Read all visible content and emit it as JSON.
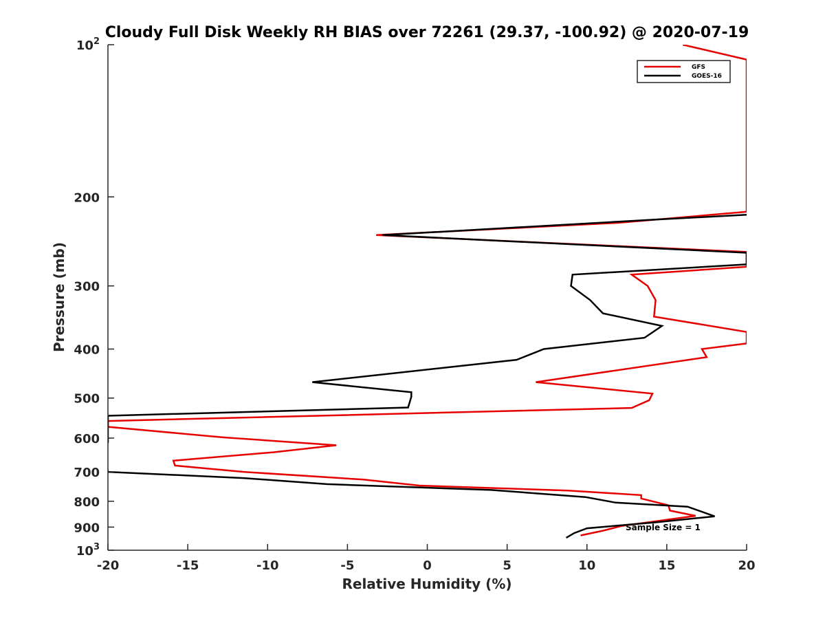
{
  "chart_data": {
    "type": "line",
    "title": "Cloudy Full Disk Weekly RH BIAS over 72261 (29.37, -100.92) @ 2020-07-19",
    "xlabel": "Relative Humidity (%)",
    "ylabel": "Pressure (mb)",
    "xlim": [
      -20,
      20
    ],
    "ylim": [
      100,
      1000
    ],
    "y_scale": "log",
    "y_reversed": true,
    "grid": false,
    "legend_position": "top-right",
    "x_ticks": [
      -20,
      -15,
      -10,
      -5,
      0,
      5,
      10,
      15,
      20
    ],
    "x_tick_labels": [
      "-20",
      "-15",
      "-10",
      "-5",
      "0",
      "5",
      "10",
      "15",
      "20"
    ],
    "y_ticks": [
      100,
      200,
      300,
      400,
      500,
      600,
      700,
      800,
      900,
      1000
    ],
    "y_tick_labels": [
      {
        "base": "10",
        "exp": "2"
      },
      {
        "base": "200",
        "exp": ""
      },
      {
        "base": "300",
        "exp": ""
      },
      {
        "base": "400",
        "exp": ""
      },
      {
        "base": "500",
        "exp": ""
      },
      {
        "base": "600",
        "exp": ""
      },
      {
        "base": "700",
        "exp": ""
      },
      {
        "base": "800",
        "exp": ""
      },
      {
        "base": "900",
        "exp": ""
      },
      {
        "base": "10",
        "exp": "3"
      }
    ],
    "annotation": "Sample Size = 1",
    "series": [
      {
        "name": "GFS",
        "color": "#e60000",
        "points": [
          [
            16,
            100
          ],
          [
            20,
            107
          ],
          [
            20,
            214
          ],
          [
            12,
            225
          ],
          [
            -3.2,
            238
          ],
          [
            20,
            257
          ],
          [
            20,
            275
          ],
          [
            12.8,
            285
          ],
          [
            13.8,
            300
          ],
          [
            14.3,
            320
          ],
          [
            14.2,
            345
          ],
          [
            20,
            370
          ],
          [
            20,
            390
          ],
          [
            17.2,
            400
          ],
          [
            17.5,
            415
          ],
          [
            6.8,
            465
          ],
          [
            14.1,
            490
          ],
          [
            13.9,
            505
          ],
          [
            12.8,
            523
          ],
          [
            -20,
            555
          ],
          [
            -20,
            570
          ],
          [
            -12.8,
            598
          ],
          [
            -5.7,
            620
          ],
          [
            -9.6,
            640
          ],
          [
            -15.9,
            665
          ],
          [
            -15.8,
            680
          ],
          [
            -11.5,
            700
          ],
          [
            -4,
            725
          ],
          [
            -0.5,
            745
          ],
          [
            8.8,
            762
          ],
          [
            13.4,
            778
          ],
          [
            13.4,
            790
          ],
          [
            15.1,
            815
          ],
          [
            15.2,
            835
          ],
          [
            16.8,
            855
          ],
          [
            12.2,
            895
          ],
          [
            11,
            915
          ],
          [
            9.6,
            935
          ]
        ]
      },
      {
        "name": "GOES-16",
        "color": "#000000",
        "points": [
          [
            20,
            217
          ],
          [
            14,
            222
          ],
          [
            -2.8,
            238
          ],
          [
            20,
            258
          ],
          [
            20,
            272
          ],
          [
            9.1,
            285
          ],
          [
            9,
            300
          ],
          [
            10.2,
            320
          ],
          [
            11,
            340
          ],
          [
            14.7,
            360
          ],
          [
            13.6,
            380
          ],
          [
            7.3,
            400
          ],
          [
            5.6,
            420
          ],
          [
            -7.2,
            465
          ],
          [
            -1,
            487
          ],
          [
            -1,
            497
          ],
          [
            -1.2,
            522
          ],
          [
            -20,
            542
          ],
          [
            -20,
            612
          ],
          [
            -20.3,
            618
          ],
          [
            -20,
            700
          ],
          [
            -11.5,
            720
          ],
          [
            -6.3,
            740
          ],
          [
            4,
            760
          ],
          [
            9.9,
            785
          ],
          [
            11.8,
            805
          ],
          [
            16.3,
            820
          ],
          [
            18,
            857
          ],
          [
            14.4,
            880
          ],
          [
            10,
            905
          ],
          [
            9.2,
            925
          ],
          [
            8.7,
            945
          ]
        ]
      }
    ]
  }
}
